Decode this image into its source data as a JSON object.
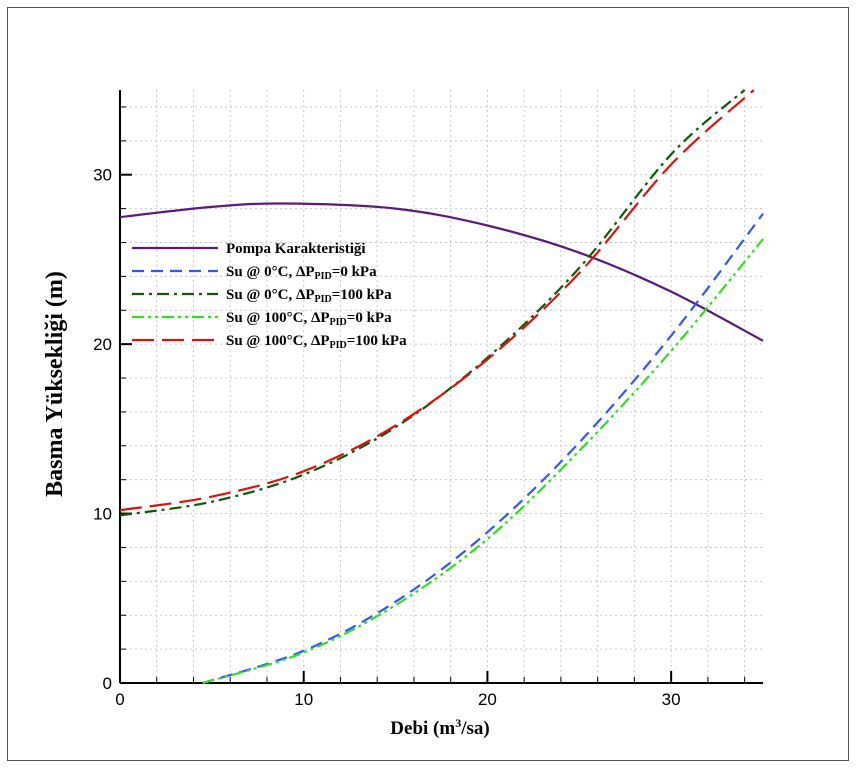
{
  "chart_data": {
    "type": "line",
    "title": "",
    "xlabel": {
      "base": "Debi (m",
      "sup": "3",
      "rest": "/sa)"
    },
    "ylabel": "Basma Yüksekliği (m)",
    "xlim": [
      0,
      35
    ],
    "ylim": [
      0,
      35
    ],
    "xticks": [
      0,
      10,
      20,
      30
    ],
    "yticks": [
      0,
      10,
      20,
      30
    ],
    "grid": true,
    "legend_position": "left",
    "series": [
      {
        "name": "Pompa Karakteristiği",
        "color": "#5b1a7a",
        "dash": "solid",
        "x": [
          0,
          5,
          9,
          15,
          20,
          25,
          30,
          35
        ],
        "y": [
          27.5,
          28.1,
          28.3,
          28.0,
          27.0,
          25.4,
          23.1,
          20.2
        ]
      },
      {
        "name": "Su @ 0°C, ΔP_PID=0 kPa",
        "label_parts": [
          "Su @ 0°C, ΔP",
          "PID",
          "=0 kPa"
        ],
        "color": "#3355ff",
        "dash": "dash",
        "x": [
          4.5,
          10,
          15,
          20,
          25,
          30,
          35
        ],
        "y": [
          0,
          1.9,
          4.8,
          8.9,
          14.2,
          20.5,
          27.7
        ]
      },
      {
        "name": "Su @ 0°C, ΔP_PID=100 kPa",
        "label_parts": [
          "Su @ 0°C, ΔP",
          "PID",
          "=100 kPa"
        ],
        "color": "#0a5a0a",
        "dash": "dashdot",
        "x": [
          0,
          5,
          10,
          15,
          20,
          25,
          30,
          34
        ],
        "y": [
          9.9,
          10.7,
          12.3,
          15.1,
          19.2,
          24.5,
          31.2,
          35.0
        ]
      },
      {
        "name": "Su @ 100°C, ΔP_PID=0 kPa",
        "label_parts": [
          "Su @ 100°C, ΔP",
          "PID",
          "=0 kPa"
        ],
        "color": "#33dd22",
        "dash": "dashdotdot",
        "x": [
          4.5,
          10,
          15,
          20,
          25,
          30,
          35
        ],
        "y": [
          0,
          1.8,
          4.6,
          8.5,
          13.7,
          19.6,
          26.2
        ]
      },
      {
        "name": "Su @ 100°C, ΔP_PID=100 kPa",
        "label_parts": [
          "Su @ 100°C, ΔP",
          "PID",
          "=100 kPa"
        ],
        "color": "#dd1111",
        "dash": "longdash",
        "x": [
          0,
          5,
          10,
          15,
          20,
          25,
          30,
          34.5
        ],
        "y": [
          10.2,
          11.0,
          12.5,
          15.2,
          19.1,
          24.2,
          30.6,
          35.0
        ]
      }
    ]
  }
}
